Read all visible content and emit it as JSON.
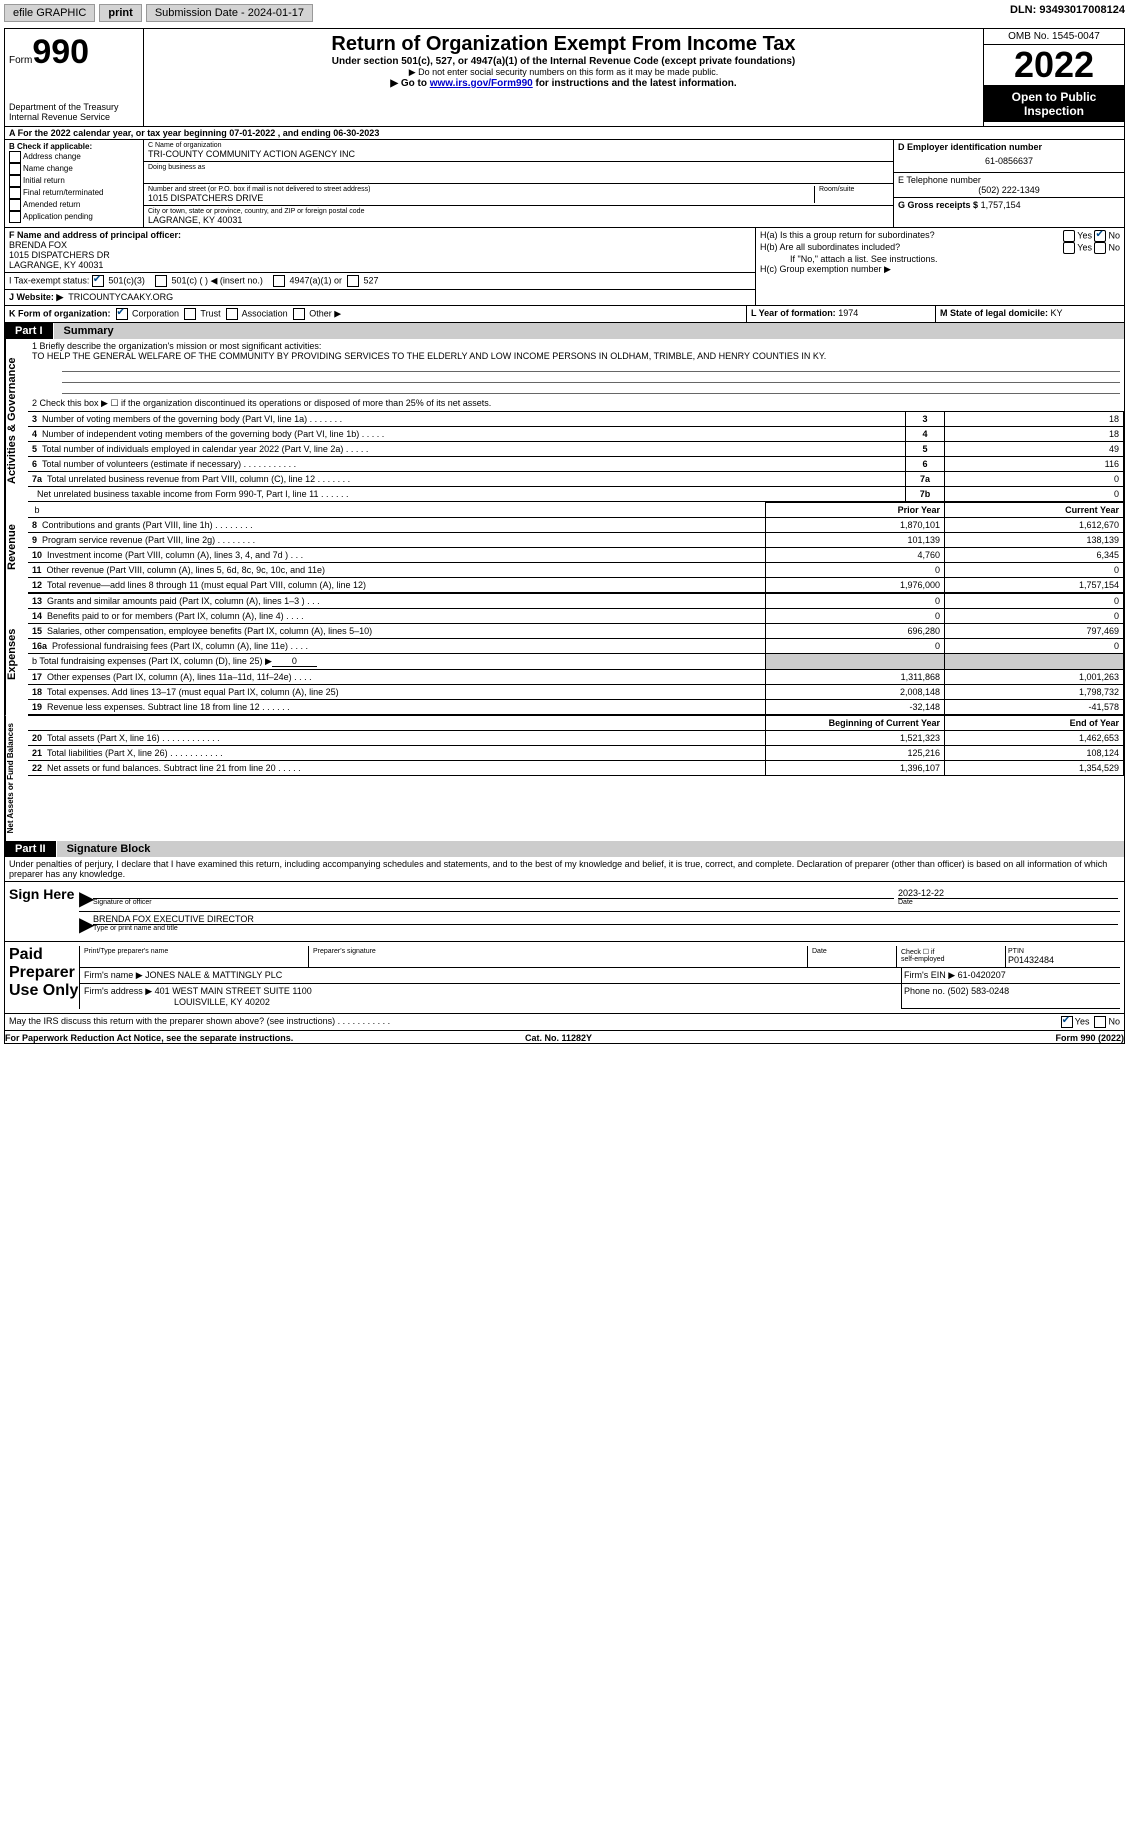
{
  "toolbar": {
    "efile_label": "efile GRAPHIC",
    "print_label": "print",
    "sub_date_label": "Submission Date - 2024-01-17",
    "dln": "DLN: 93493017008124"
  },
  "header": {
    "form_word": "Form",
    "form_num": "990",
    "title": "Return of Organization Exempt From Income Tax",
    "sub1": "Under section 501(c), 527, or 4947(a)(1) of the Internal Revenue Code (except private foundations)",
    "sub2": "▶ Do not enter social security numbers on this form as it may be made public.",
    "sub3_a": "▶ Go to ",
    "sub3_link": "www.irs.gov/Form990",
    "sub3_b": " for instructions and the latest information.",
    "dept": "Department of the Treasury",
    "irs": "Internal Revenue Service",
    "omb": "OMB No. 1545-0047",
    "year": "2022",
    "open": "Open to Public Inspection"
  },
  "row_a": "A For the 2022 calendar year, or tax year beginning 07-01-2022    , and ending 06-30-2023",
  "box_b": {
    "title": "B Check if applicable:",
    "opts": [
      "Address change",
      "Name change",
      "Initial return",
      "Final return/terminated",
      "Amended return",
      "Application pending"
    ]
  },
  "box_c": {
    "name_lab": "C Name of organization",
    "name": "TRI-COUNTY COMMUNITY ACTION AGENCY INC",
    "dba_lab": "Doing business as",
    "street_lab": "Number and street (or P.O. box if mail is not delivered to street address)",
    "room_lab": "Room/suite",
    "street": "1015 DISPATCHERS DRIVE",
    "city_lab": "City or town, state or province, country, and ZIP or foreign postal code",
    "city": "LAGRANGE, KY  40031"
  },
  "box_d": {
    "lab": "D Employer identification number",
    "val": "61-0856637"
  },
  "box_e": {
    "lab": "E Telephone number",
    "val": "(502) 222-1349"
  },
  "box_g": {
    "lab": "G Gross receipts $",
    "val": "1,757,154"
  },
  "box_f": {
    "lab": "F Name and address of principal officer:",
    "l1": "BRENDA FOX",
    "l2": "1015 DISPATCHERS DR",
    "l3": "LAGRANGE, KY  40031"
  },
  "box_h": {
    "a": "H(a)  Is this a group return for subordinates?",
    "b": "H(b)  Are all subordinates included?",
    "note": "If \"No,\" attach a list. See instructions.",
    "c": "H(c)  Group exemption number ▶",
    "yes": "Yes",
    "no": "No"
  },
  "box_i": {
    "lab": "I   Tax-exempt status:",
    "o1": "501(c)(3)",
    "o2": "501(c) (   ) ◀ (insert no.)",
    "o3": "4947(a)(1) or",
    "o4": "527"
  },
  "box_j": {
    "lab": "J   Website: ▶",
    "val": "TRICOUNTYCAAKY.ORG"
  },
  "box_k": {
    "lab": "K Form of organization:",
    "o1": "Corporation",
    "o2": "Trust",
    "o3": "Association",
    "o4": "Other ▶"
  },
  "box_l": {
    "lab": "L Year of formation:",
    "val": "1974"
  },
  "box_m": {
    "lab": "M State of legal domicile:",
    "val": "KY"
  },
  "part1": {
    "n": "Part I",
    "t": "Summary"
  },
  "line1": {
    "lab": "1   Briefly describe the organization's mission or most significant activities:",
    "text": "TO HELP THE GENERAL WELFARE OF THE COMMUNITY BY PROVIDING SERVICES TO THE ELDERLY AND LOW INCOME PERSONS IN OLDHAM, TRIMBLE, AND HENRY COUNTIES IN KY."
  },
  "line2": "2   Check this box ▶ ☐ if the organization discontinued its operations or disposed of more than 25% of its net assets.",
  "sum_lines": [
    {
      "n": "3",
      "t": "Number of voting members of the governing body (Part VI, line 1a)   .    .    .    .    .    .    .",
      "box": "3",
      "v": "18"
    },
    {
      "n": "4",
      "t": "Number of independent voting members of the governing body (Part VI, line 1b)   .    .    .    .    .",
      "box": "4",
      "v": "18"
    },
    {
      "n": "5",
      "t": "Total number of individuals employed in calendar year 2022 (Part V, line 2a)   .    .    .    .    .",
      "box": "5",
      "v": "49"
    },
    {
      "n": "6",
      "t": "Total number of volunteers (estimate if necessary)   .    .    .    .    .    .    .    .    .    .    .",
      "box": "6",
      "v": "116"
    },
    {
      "n": "7a",
      "t": "Total unrelated business revenue from Part VIII, column (C), line 12   .    .    .    .    .    .    .",
      "box": "7a",
      "v": "0"
    },
    {
      "n": "",
      "t": "Net unrelated business taxable income from Form 990-T, Part I, line 11   .    .    .    .    .    .",
      "box": "7b",
      "v": "0"
    }
  ],
  "py_cy_hdr": {
    "py": "Prior Year",
    "cy": "Current Year"
  },
  "rev_lines": [
    {
      "n": "8",
      "t": "Contributions and grants (Part VIII, line 1h)   .    .    .    .    .    .    .    .",
      "py": "1,870,101",
      "cy": "1,612,670"
    },
    {
      "n": "9",
      "t": "Program service revenue (Part VIII, line 2g)   .    .    .    .    .    .    .    .",
      "py": "101,139",
      "cy": "138,139"
    },
    {
      "n": "10",
      "t": "Investment income (Part VIII, column (A), lines 3, 4, and 7d )   .    .    .",
      "py": "4,760",
      "cy": "6,345"
    },
    {
      "n": "11",
      "t": "Other revenue (Part VIII, column (A), lines 5, 6d, 8c, 9c, 10c, and 11e)",
      "py": "0",
      "cy": "0"
    },
    {
      "n": "12",
      "t": "Total revenue—add lines 8 through 11 (must equal Part VIII, column (A), line 12)",
      "py": "1,976,000",
      "cy": "1,757,154"
    }
  ],
  "exp_lines": [
    {
      "n": "13",
      "t": "Grants and similar amounts paid (Part IX, column (A), lines 1–3 )   .    .    .",
      "py": "0",
      "cy": "0"
    },
    {
      "n": "14",
      "t": "Benefits paid to or for members (Part IX, column (A), line 4)   .    .    .    .",
      "py": "0",
      "cy": "0"
    },
    {
      "n": "15",
      "t": "Salaries, other compensation, employee benefits (Part IX, column (A), lines 5–10)",
      "py": "696,280",
      "cy": "797,469"
    },
    {
      "n": "16a",
      "t": "Professional fundraising fees (Part IX, column (A), line 11e)   .    .    .    .",
      "py": "0",
      "cy": "0"
    }
  ],
  "line16b": {
    "t": "b  Total fundraising expenses (Part IX, column (D), line 25) ▶",
    "v": "0"
  },
  "exp_lines2": [
    {
      "n": "17",
      "t": "Other expenses (Part IX, column (A), lines 11a–11d, 11f–24e)   .    .    .    .",
      "py": "1,311,868",
      "cy": "1,001,263"
    },
    {
      "n": "18",
      "t": "Total expenses. Add lines 13–17 (must equal Part IX, column (A), line 25)",
      "py": "2,008,148",
      "cy": "1,798,732"
    },
    {
      "n": "19",
      "t": "Revenue less expenses. Subtract line 18 from line 12   .    .    .    .    .    .",
      "py": "-32,148",
      "cy": "-41,578"
    }
  ],
  "na_hdr": {
    "b": "Beginning of Current Year",
    "e": "End of Year"
  },
  "na_lines": [
    {
      "n": "20",
      "t": "Total assets (Part X, line 16)   .    .    .    .    .    .    .    .    .    .    .    .",
      "b": "1,521,323",
      "e": "1,462,653"
    },
    {
      "n": "21",
      "t": "Total liabilities (Part X, line 26)   .    .    .    .    .    .    .    .    .    .    .",
      "b": "125,216",
      "e": "108,124"
    },
    {
      "n": "22",
      "t": "Net assets or fund balances. Subtract line 21 from line 20   .    .    .    .    .",
      "b": "1,396,107",
      "e": "1,354,529"
    }
  ],
  "side_labels": {
    "ag": "Activities & Governance",
    "rev": "Revenue",
    "exp": "Expenses",
    "na": "Net Assets or Fund Balances"
  },
  "part2": {
    "n": "Part II",
    "t": "Signature Block"
  },
  "penalty": "Under penalties of perjury, I declare that I have examined this return, including accompanying schedules and statements, and to the best of my knowledge and belief, it is true, correct, and complete. Declaration of preparer (other than officer) is based on all information of which preparer has any knowledge.",
  "sign": {
    "here": "Sign Here",
    "sig_lab": "Signature of officer",
    "date": "2023-12-22",
    "date_lab": "Date",
    "name": "BRENDA FOX  EXECUTIVE DIRECTOR",
    "name_lab": "Type or print name and title"
  },
  "prep": {
    "title": "Paid Preparer Use Only",
    "h1": "Print/Type preparer's name",
    "h2": "Preparer's signature",
    "h3": "Date",
    "h4a": "Check ☐ if",
    "h4b": "self-employed",
    "h5": "PTIN",
    "ptin": "P01432484",
    "firm_lab": "Firm's name    ▶",
    "firm": "JONES NALE & MATTINGLY PLC",
    "ein_lab": "Firm's EIN ▶",
    "ein": "61-0420207",
    "addr_lab": "Firm's address ▶",
    "addr1": "401 WEST MAIN STREET SUITE 1100",
    "addr2": "LOUISVILLE, KY  40202",
    "phone_lab": "Phone no.",
    "phone": "(502) 583-0248"
  },
  "discuss": "May the IRS discuss this return with the preparer shown above? (see instructions)   .    .    .    .    .    .    .    .    .    .    .",
  "footer": {
    "l": "For Paperwork Reduction Act Notice, see the separate instructions.",
    "m": "Cat. No. 11282Y",
    "r": "Form 990 (2022)"
  }
}
